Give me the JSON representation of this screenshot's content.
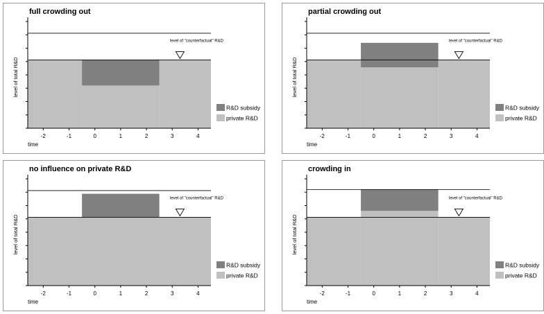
{
  "chart_data": [
    {
      "type": "area",
      "title": "full crowding out",
      "xlabel": "time",
      "ylabel": "level of total R&D",
      "x_ticks": [
        -2,
        -1,
        0,
        1,
        2,
        3,
        4
      ],
      "xlim": [
        -2.6,
        4.5
      ],
      "ylim": [
        0,
        10
      ],
      "private_rd": [
        {
          "x_start": -2.6,
          "x_end": -0.5,
          "level": 6.4
        },
        {
          "x_start": -0.5,
          "x_end": 2.5,
          "level": 4.0
        },
        {
          "x_start": 2.5,
          "x_end": 4.5,
          "level": 6.4
        }
      ],
      "subsidy": {
        "x_start": -0.5,
        "x_end": 2.5,
        "from": 4.0,
        "to": 6.4
      },
      "counterfactual": {
        "label": "level of \"counterfactual\" R&D",
        "x": 3.3,
        "level": 6.4
      },
      "top_line_level": 8.9,
      "legend": [
        {
          "label": "R&D subsidy",
          "color": "#808080"
        },
        {
          "label": "private R&D",
          "color": "#c0c0c0"
        }
      ]
    },
    {
      "type": "area",
      "title": "partial crowding out",
      "xlabel": "time",
      "ylabel": "level of total R&D",
      "x_ticks": [
        -2,
        -1,
        0,
        1,
        2,
        3,
        4
      ],
      "xlim": [
        -2.6,
        4.5
      ],
      "ylim": [
        0,
        10
      ],
      "private_rd": [
        {
          "x_start": -2.6,
          "x_end": -0.5,
          "level": 6.4
        },
        {
          "x_start": -0.5,
          "x_end": 2.5,
          "level": 5.7
        },
        {
          "x_start": 2.5,
          "x_end": 4.5,
          "level": 6.4
        }
      ],
      "subsidy": {
        "x_start": -0.5,
        "x_end": 2.5,
        "from": 5.7,
        "to": 8.0
      },
      "counterfactual": {
        "label": "level of \"counterfactual\" R&D",
        "x": 3.3,
        "level": 6.4
      },
      "top_line_level": 8.9,
      "legend": [
        {
          "label": "R&D subsidy",
          "color": "#808080"
        },
        {
          "label": "private R&D",
          "color": "#c0c0c0"
        }
      ]
    },
    {
      "type": "area",
      "title": "no influence on private R&D",
      "xlabel": "time",
      "ylabel": "level of total R&D",
      "x_ticks": [
        -2,
        -1,
        0,
        1,
        2,
        3,
        4
      ],
      "xlim": [
        -2.6,
        4.5
      ],
      "ylim": [
        0,
        10
      ],
      "private_rd": [
        {
          "x_start": -2.6,
          "x_end": 4.5,
          "level": 6.4
        }
      ],
      "subsidy": {
        "x_start": -0.5,
        "x_end": 2.5,
        "from": 6.4,
        "to": 8.6
      },
      "counterfactual": {
        "label": "level of \"counterfactual\" R&D",
        "x": 3.3,
        "level": 6.4
      },
      "top_line_level": 8.9,
      "legend": [
        {
          "label": "R&D subsidy",
          "color": "#808080"
        },
        {
          "label": "private R&D",
          "color": "#c0c0c0"
        }
      ]
    },
    {
      "type": "area",
      "title": "crowding in",
      "xlabel": "time",
      "ylabel": "level of total R&D",
      "x_ticks": [
        -2,
        -1,
        0,
        1,
        2,
        3,
        4
      ],
      "xlim": [
        -2.6,
        4.5
      ],
      "ylim": [
        0,
        10
      ],
      "private_rd": [
        {
          "x_start": -2.6,
          "x_end": -0.5,
          "level": 6.4
        },
        {
          "x_start": -0.5,
          "x_end": 2.5,
          "level": 7.0
        },
        {
          "x_start": 2.5,
          "x_end": 4.5,
          "level": 6.4
        }
      ],
      "subsidy": {
        "x_start": -0.5,
        "x_end": 2.5,
        "from": 7.0,
        "to": 9.0
      },
      "counterfactual": {
        "label": "level of \"counterfactual\" R&D",
        "x": 3.3,
        "level": 6.4
      },
      "top_line_level": 9.0,
      "legend": [
        {
          "label": "R&D subsidy",
          "color": "#808080"
        },
        {
          "label": "private R&D",
          "color": "#c0c0c0"
        }
      ]
    }
  ],
  "colors": {
    "subsidy": "#808080",
    "private": "#c0c0c0",
    "line": "#000000",
    "frame": "#999999"
  }
}
